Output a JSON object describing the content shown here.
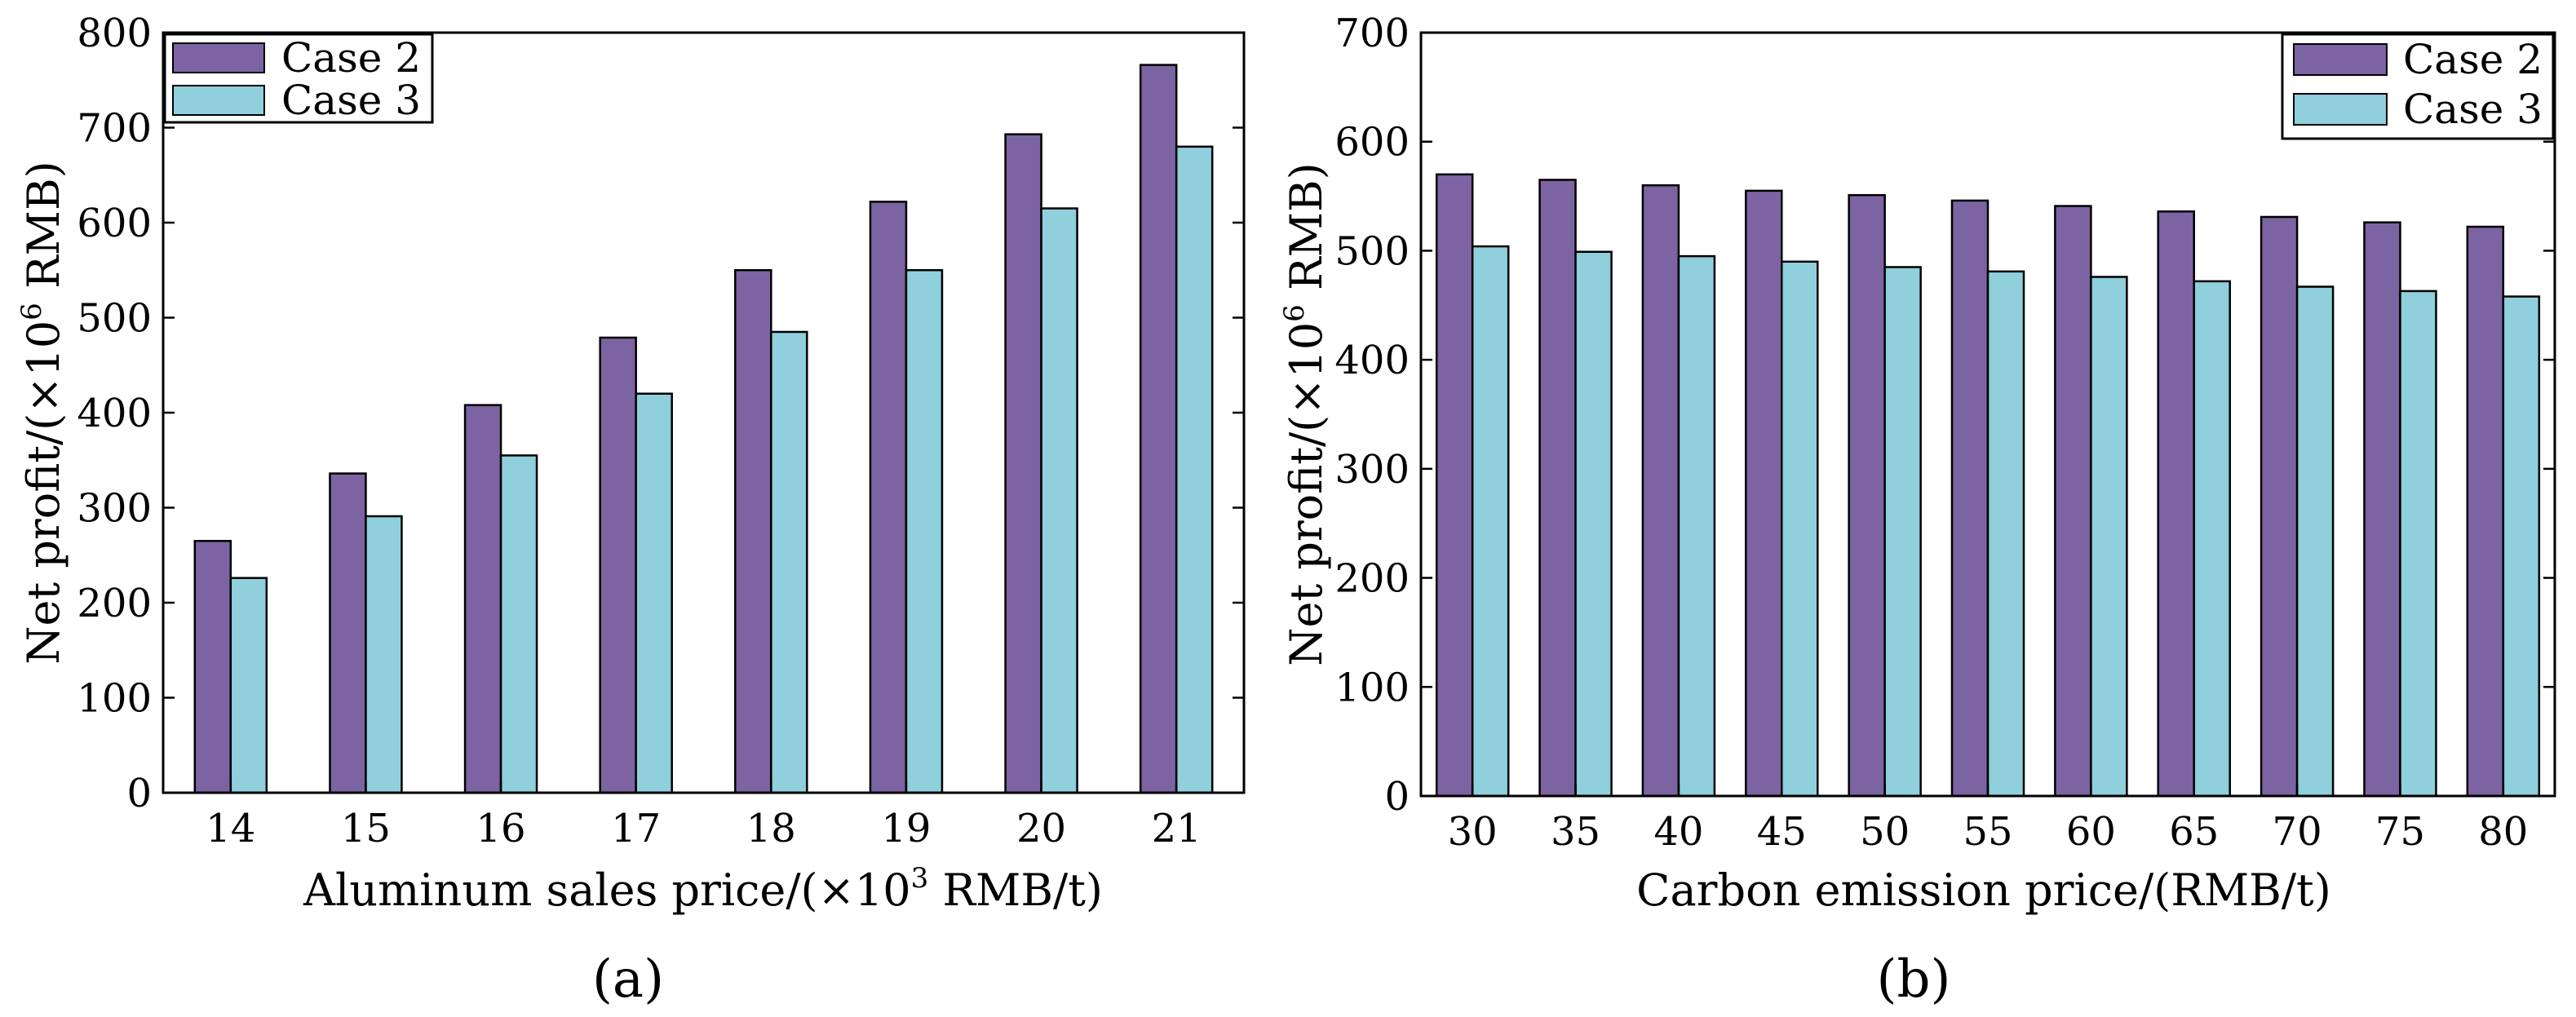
{
  "colors": {
    "case2": "#7c63a1",
    "case3": "#90cfdc",
    "axis": "#000000"
  },
  "chart_data": [
    {
      "type": "bar",
      "panel_label": "(a)",
      "categories": [
        "14",
        "15",
        "16",
        "17",
        "18",
        "19",
        "20",
        "21"
      ],
      "series": [
        {
          "name": "Case 2",
          "values": [
            265,
            336,
            408,
            479,
            550,
            622,
            693,
            766
          ]
        },
        {
          "name": "Case 3",
          "values": [
            226,
            291,
            355,
            420,
            485,
            550,
            615,
            680
          ]
        }
      ],
      "xlabel_prefix": "Aluminum sales price/(×10",
      "xlabel_sup": "3",
      "xlabel_suffix": " RMB/t)",
      "ylabel_prefix": "Net profit/(×10",
      "ylabel_sup": "6",
      "ylabel_suffix": " RMB)",
      "ylim": [
        0,
        800
      ],
      "yticks": [
        "0",
        "100",
        "200",
        "300",
        "400",
        "500",
        "600",
        "700",
        "800"
      ],
      "grid": false,
      "legend": "top-left"
    },
    {
      "type": "bar",
      "panel_label": "(b)",
      "categories": [
        "30",
        "35",
        "40",
        "45",
        "50",
        "55",
        "60",
        "65",
        "70",
        "75",
        "80"
      ],
      "series": [
        {
          "name": "Case 2",
          "values": [
            570,
            565,
            560,
            555,
            551,
            546,
            541,
            536,
            531,
            526,
            522
          ]
        },
        {
          "name": "Case 3",
          "values": [
            504,
            499,
            495,
            490,
            485,
            481,
            476,
            472,
            467,
            463,
            458
          ]
        }
      ],
      "xlabel": "Carbon emission price/(RMB/t)",
      "ylabel_prefix": "Net profit/(×10",
      "ylabel_sup": "6",
      "ylabel_suffix": " RMB)",
      "ylim": [
        0,
        700
      ],
      "yticks": [
        "0",
        "100",
        "200",
        "300",
        "400",
        "500",
        "600",
        "700"
      ],
      "grid": false,
      "legend": "top-right"
    }
  ]
}
